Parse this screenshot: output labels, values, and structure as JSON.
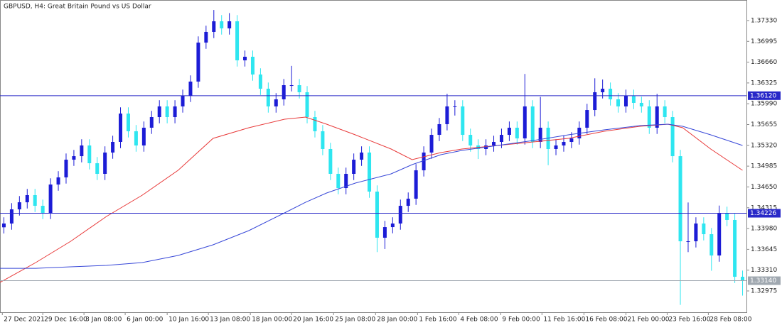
{
  "chart_data": {
    "type": "candlestick",
    "title": "GBPUSD, H4:  Great Britain Pound vs US Dollar",
    "up_color": "#1c1cd6",
    "down_color": "#2ee6f0",
    "xlim": [
      -0.5,
      95.5
    ],
    "xticks": [
      {
        "value": -0.2,
        "label": "27 Dec 2021"
      },
      {
        "value": 5,
        "label": "29 Dec 16:00"
      },
      {
        "value": 10.3,
        "label": "3 Jan 08:00"
      },
      {
        "value": 15.6,
        "label": "6 Jan 00:00"
      },
      {
        "value": 21,
        "label": "10 Jan 16:00"
      },
      {
        "value": 26.3,
        "label": "13 Jan 08:00"
      },
      {
        "value": 31.7,
        "label": "18 Jan 00:00"
      },
      {
        "value": 37,
        "label": "20 Jan 16:00"
      },
      {
        "value": 42.4,
        "label": "25 Jan 08:00"
      },
      {
        "value": 47.8,
        "label": "28 Jan 00:00"
      },
      {
        "value": 53.2,
        "label": "1 Feb 16:00"
      },
      {
        "value": 58.5,
        "label": "4 Feb 08:00"
      },
      {
        "value": 63.9,
        "label": "9 Feb 00:00"
      },
      {
        "value": 69.2,
        "label": "11 Feb 16:00"
      },
      {
        "value": 74.6,
        "label": "16 Feb 08:00"
      },
      {
        "value": 80,
        "label": "21 Feb 00:00"
      },
      {
        "value": 85.3,
        "label": "23 Feb 16:00"
      },
      {
        "value": 90.6,
        "label": "28 Feb 08:00"
      }
    ],
    "ylim": [
      1.32632,
      1.37661
    ],
    "yticks": [
      {
        "value": 1.3733,
        "label": "1.37330"
      },
      {
        "value": 1.36995,
        "label": "1.36995"
      },
      {
        "value": 1.3666,
        "label": "1.36660"
      },
      {
        "value": 1.36325,
        "label": "1.36325"
      },
      {
        "value": 1.3599,
        "label": "1.35990"
      },
      {
        "value": 1.35655,
        "label": "1.35655"
      },
      {
        "value": 1.3532,
        "label": "1.35320"
      },
      {
        "value": 1.34985,
        "label": "1.34985"
      },
      {
        "value": 1.3465,
        "label": "1.34650"
      },
      {
        "value": 1.34315,
        "label": "1.34315"
      },
      {
        "value": 1.3398,
        "label": "1.33980"
      },
      {
        "value": 1.33645,
        "label": "1.33645"
      },
      {
        "value": 1.3331,
        "label": "1.33310"
      },
      {
        "value": 1.32975,
        "label": "1.32975"
      }
    ],
    "levels": [
      {
        "value": 1.3612,
        "label": "1.36120",
        "color": "#2828c8"
      },
      {
        "value": 1.34226,
        "label": "1.34226",
        "color": "#2828c8"
      },
      {
        "value": 1.3314,
        "label": "1.33140",
        "color": "#a0a8b0"
      }
    ],
    "ohlc": [
      [
        1.34,
        1.34161,
        1.339,
        1.34061
      ],
      [
        1.34061,
        1.34389,
        1.33961,
        1.34289
      ],
      [
        1.34289,
        1.34503,
        1.34189,
        1.34403
      ],
      [
        1.34403,
        1.34618,
        1.34303,
        1.34518
      ],
      [
        1.34518,
        1.34618,
        1.34246,
        1.34346
      ],
      [
        1.34346,
        1.34446,
        1.34132,
        1.34232
      ],
      [
        1.34232,
        1.34789,
        1.34132,
        1.34689
      ],
      [
        1.34689,
        1.34904,
        1.34589,
        1.34804
      ],
      [
        1.34804,
        1.35189,
        1.34704,
        1.35089
      ],
      [
        1.35089,
        1.35246,
        1.34989,
        1.35146
      ],
      [
        1.35146,
        1.35418,
        1.35046,
        1.35318
      ],
      [
        1.35318,
        1.35418,
        1.34932,
        1.35032
      ],
      [
        1.35032,
        1.35132,
        1.34761,
        1.34861
      ],
      [
        1.34861,
        1.35304,
        1.34761,
        1.35204
      ],
      [
        1.35204,
        1.35475,
        1.35104,
        1.35375
      ],
      [
        1.35375,
        1.35932,
        1.35275,
        1.35832
      ],
      [
        1.35832,
        1.35932,
        1.35447,
        1.35547
      ],
      [
        1.35547,
        1.35647,
        1.35218,
        1.35318
      ],
      [
        1.35318,
        1.35704,
        1.35218,
        1.35604
      ],
      [
        1.35604,
        1.35875,
        1.35504,
        1.35775
      ],
      [
        1.35775,
        1.36047,
        1.35675,
        1.35947
      ],
      [
        1.35947,
        1.36047,
        1.35675,
        1.35775
      ],
      [
        1.35775,
        1.36047,
        1.35675,
        1.35947
      ],
      [
        1.35947,
        1.36218,
        1.35847,
        1.36118
      ],
      [
        1.36118,
        1.36447,
        1.36018,
        1.36347
      ],
      [
        1.36347,
        1.37075,
        1.36247,
        1.36975
      ],
      [
        1.36975,
        1.37247,
        1.36875,
        1.37147
      ],
      [
        1.37147,
        1.375,
        1.37047,
        1.37318
      ],
      [
        1.37318,
        1.37418,
        1.37104,
        1.37204
      ],
      [
        1.37204,
        1.3745,
        1.37104,
        1.37318
      ],
      [
        1.37318,
        1.37418,
        1.36589,
        1.36689
      ],
      [
        1.36689,
        1.36847,
        1.36589,
        1.36747
      ],
      [
        1.36747,
        1.36847,
        1.36361,
        1.36461
      ],
      [
        1.36461,
        1.36561,
        1.36132,
        1.36232
      ],
      [
        1.36232,
        1.36332,
        1.35847,
        1.35947
      ],
      [
        1.35947,
        1.36161,
        1.35847,
        1.36061
      ],
      [
        1.36061,
        1.36389,
        1.35961,
        1.36289
      ],
      [
        1.36289,
        1.366,
        1.36189,
        1.36289
      ],
      [
        1.36289,
        1.36389,
        1.36075,
        1.36175
      ],
      [
        1.36175,
        1.36275,
        1.35675,
        1.35775
      ],
      [
        1.35775,
        1.35875,
        1.35447,
        1.35547
      ],
      [
        1.35547,
        1.35647,
        1.35161,
        1.35261
      ],
      [
        1.35261,
        1.35361,
        1.34761,
        1.34861
      ],
      [
        1.34861,
        1.34961,
        1.34532,
        1.34632
      ],
      [
        1.34632,
        1.34961,
        1.34532,
        1.34861
      ],
      [
        1.34861,
        1.35189,
        1.34761,
        1.35089
      ],
      [
        1.35089,
        1.35304,
        1.34989,
        1.35204
      ],
      [
        1.35204,
        1.35304,
        1.34475,
        1.34575
      ],
      [
        1.34575,
        1.34675,
        1.336,
        1.33832
      ],
      [
        1.33832,
        1.34103,
        1.3365,
        1.34003
      ],
      [
        1.34003,
        1.34161,
        1.33903,
        1.34061
      ],
      [
        1.34061,
        1.34446,
        1.33961,
        1.34346
      ],
      [
        1.34346,
        1.34561,
        1.34246,
        1.34461
      ],
      [
        1.34461,
        1.35018,
        1.34361,
        1.34918
      ],
      [
        1.34918,
        1.35304,
        1.34818,
        1.35204
      ],
      [
        1.35204,
        1.35589,
        1.35104,
        1.35489
      ],
      [
        1.35489,
        1.35761,
        1.35389,
        1.35661
      ],
      [
        1.35661,
        1.3615,
        1.35561,
        1.35947
      ],
      [
        1.35947,
        1.36047,
        1.358,
        1.35947
      ],
      [
        1.35947,
        1.36047,
        1.35389,
        1.35489
      ],
      [
        1.35489,
        1.35589,
        1.35218,
        1.35318
      ],
      [
        1.35318,
        1.35418,
        1.351,
        1.35261
      ],
      [
        1.35261,
        1.35418,
        1.35161,
        1.35318
      ],
      [
        1.35318,
        1.35475,
        1.35218,
        1.35375
      ],
      [
        1.35375,
        1.35589,
        1.35275,
        1.35489
      ],
      [
        1.35489,
        1.35704,
        1.35389,
        1.35604
      ],
      [
        1.35604,
        1.35704,
        1.35332,
        1.35432
      ],
      [
        1.35432,
        1.3647,
        1.35332,
        1.35947
      ],
      [
        1.35947,
        1.36047,
        1.35275,
        1.35375
      ],
      [
        1.35375,
        1.361,
        1.35275,
        1.35604
      ],
      [
        1.35604,
        1.35704,
        1.35,
        1.35261
      ],
      [
        1.35261,
        1.35418,
        1.35161,
        1.35318
      ],
      [
        1.35318,
        1.35475,
        1.35218,
        1.35375
      ],
      [
        1.35375,
        1.35532,
        1.35275,
        1.35432
      ],
      [
        1.35432,
        1.35704,
        1.35332,
        1.35604
      ],
      [
        1.35604,
        1.35989,
        1.35504,
        1.35889
      ],
      [
        1.35889,
        1.364,
        1.35789,
        1.36175
      ],
      [
        1.36175,
        1.3638,
        1.36075,
        1.36232
      ],
      [
        1.36232,
        1.36332,
        1.35961,
        1.36061
      ],
      [
        1.36061,
        1.36161,
        1.35847,
        1.35947
      ],
      [
        1.35947,
        1.36218,
        1.35847,
        1.36118
      ],
      [
        1.36118,
        1.36218,
        1.35904,
        1.36004
      ],
      [
        1.36004,
        1.36104,
        1.35847,
        1.35947
      ],
      [
        1.35947,
        1.36047,
        1.35504,
        1.35604
      ],
      [
        1.35604,
        1.3615,
        1.35504,
        1.35947
      ],
      [
        1.35947,
        1.36047,
        1.35675,
        1.35775
      ],
      [
        1.35775,
        1.35875,
        1.35046,
        1.35146
      ],
      [
        1.35146,
        1.35246,
        1.3275,
        1.33775
      ],
      [
        1.33775,
        1.344,
        1.336,
        1.33775
      ],
      [
        1.33775,
        1.34161,
        1.33675,
        1.34061
      ],
      [
        1.34061,
        1.34161,
        1.33789,
        1.33889
      ],
      [
        1.33889,
        1.33989,
        1.333,
        1.33546
      ],
      [
        1.33546,
        1.3435,
        1.33446,
        1.34232
      ],
      [
        1.34232,
        1.34332,
        1.34018,
        1.34118
      ],
      [
        1.34118,
        1.34218,
        1.33103,
        1.33203
      ],
      [
        1.33203,
        1.33303,
        1.329,
        1.3314
      ]
    ],
    "line_x": [
      -0.5,
      4.1,
      8.6,
      13.2,
      17.8,
      22.4,
      26.9,
      31.5,
      36.1,
      38.8,
      41.5,
      45.2,
      49.8,
      52.5,
      56.2,
      58.9,
      63.5,
      68.1,
      72.6,
      77.2,
      81.8,
      85.4,
      87.3,
      90.9,
      95
    ],
    "lines": [
      {
        "color": "#e83a3a",
        "values": [
          1.33112,
          1.33432,
          1.33775,
          1.34175,
          1.34518,
          1.34918,
          1.35432,
          1.35604,
          1.35741,
          1.35775,
          1.35661,
          1.35489,
          1.35261,
          1.35089,
          1.35204,
          1.35261,
          1.35318,
          1.35375,
          1.35432,
          1.35547,
          1.35626,
          1.35661,
          1.35604,
          1.35261,
          1.34918
        ]
      },
      {
        "color": "#3848d8",
        "values": [
          1.3334,
          1.3334,
          1.33363,
          1.33386,
          1.33432,
          1.33546,
          1.33718,
          1.33946,
          1.34232,
          1.34403,
          1.34552,
          1.34712,
          1.34861,
          1.35009,
          1.35169,
          1.35238,
          1.35318,
          1.35398,
          1.35489,
          1.35569,
          1.35638,
          1.35661,
          1.35626,
          1.35489,
          1.35318
        ]
      }
    ]
  }
}
